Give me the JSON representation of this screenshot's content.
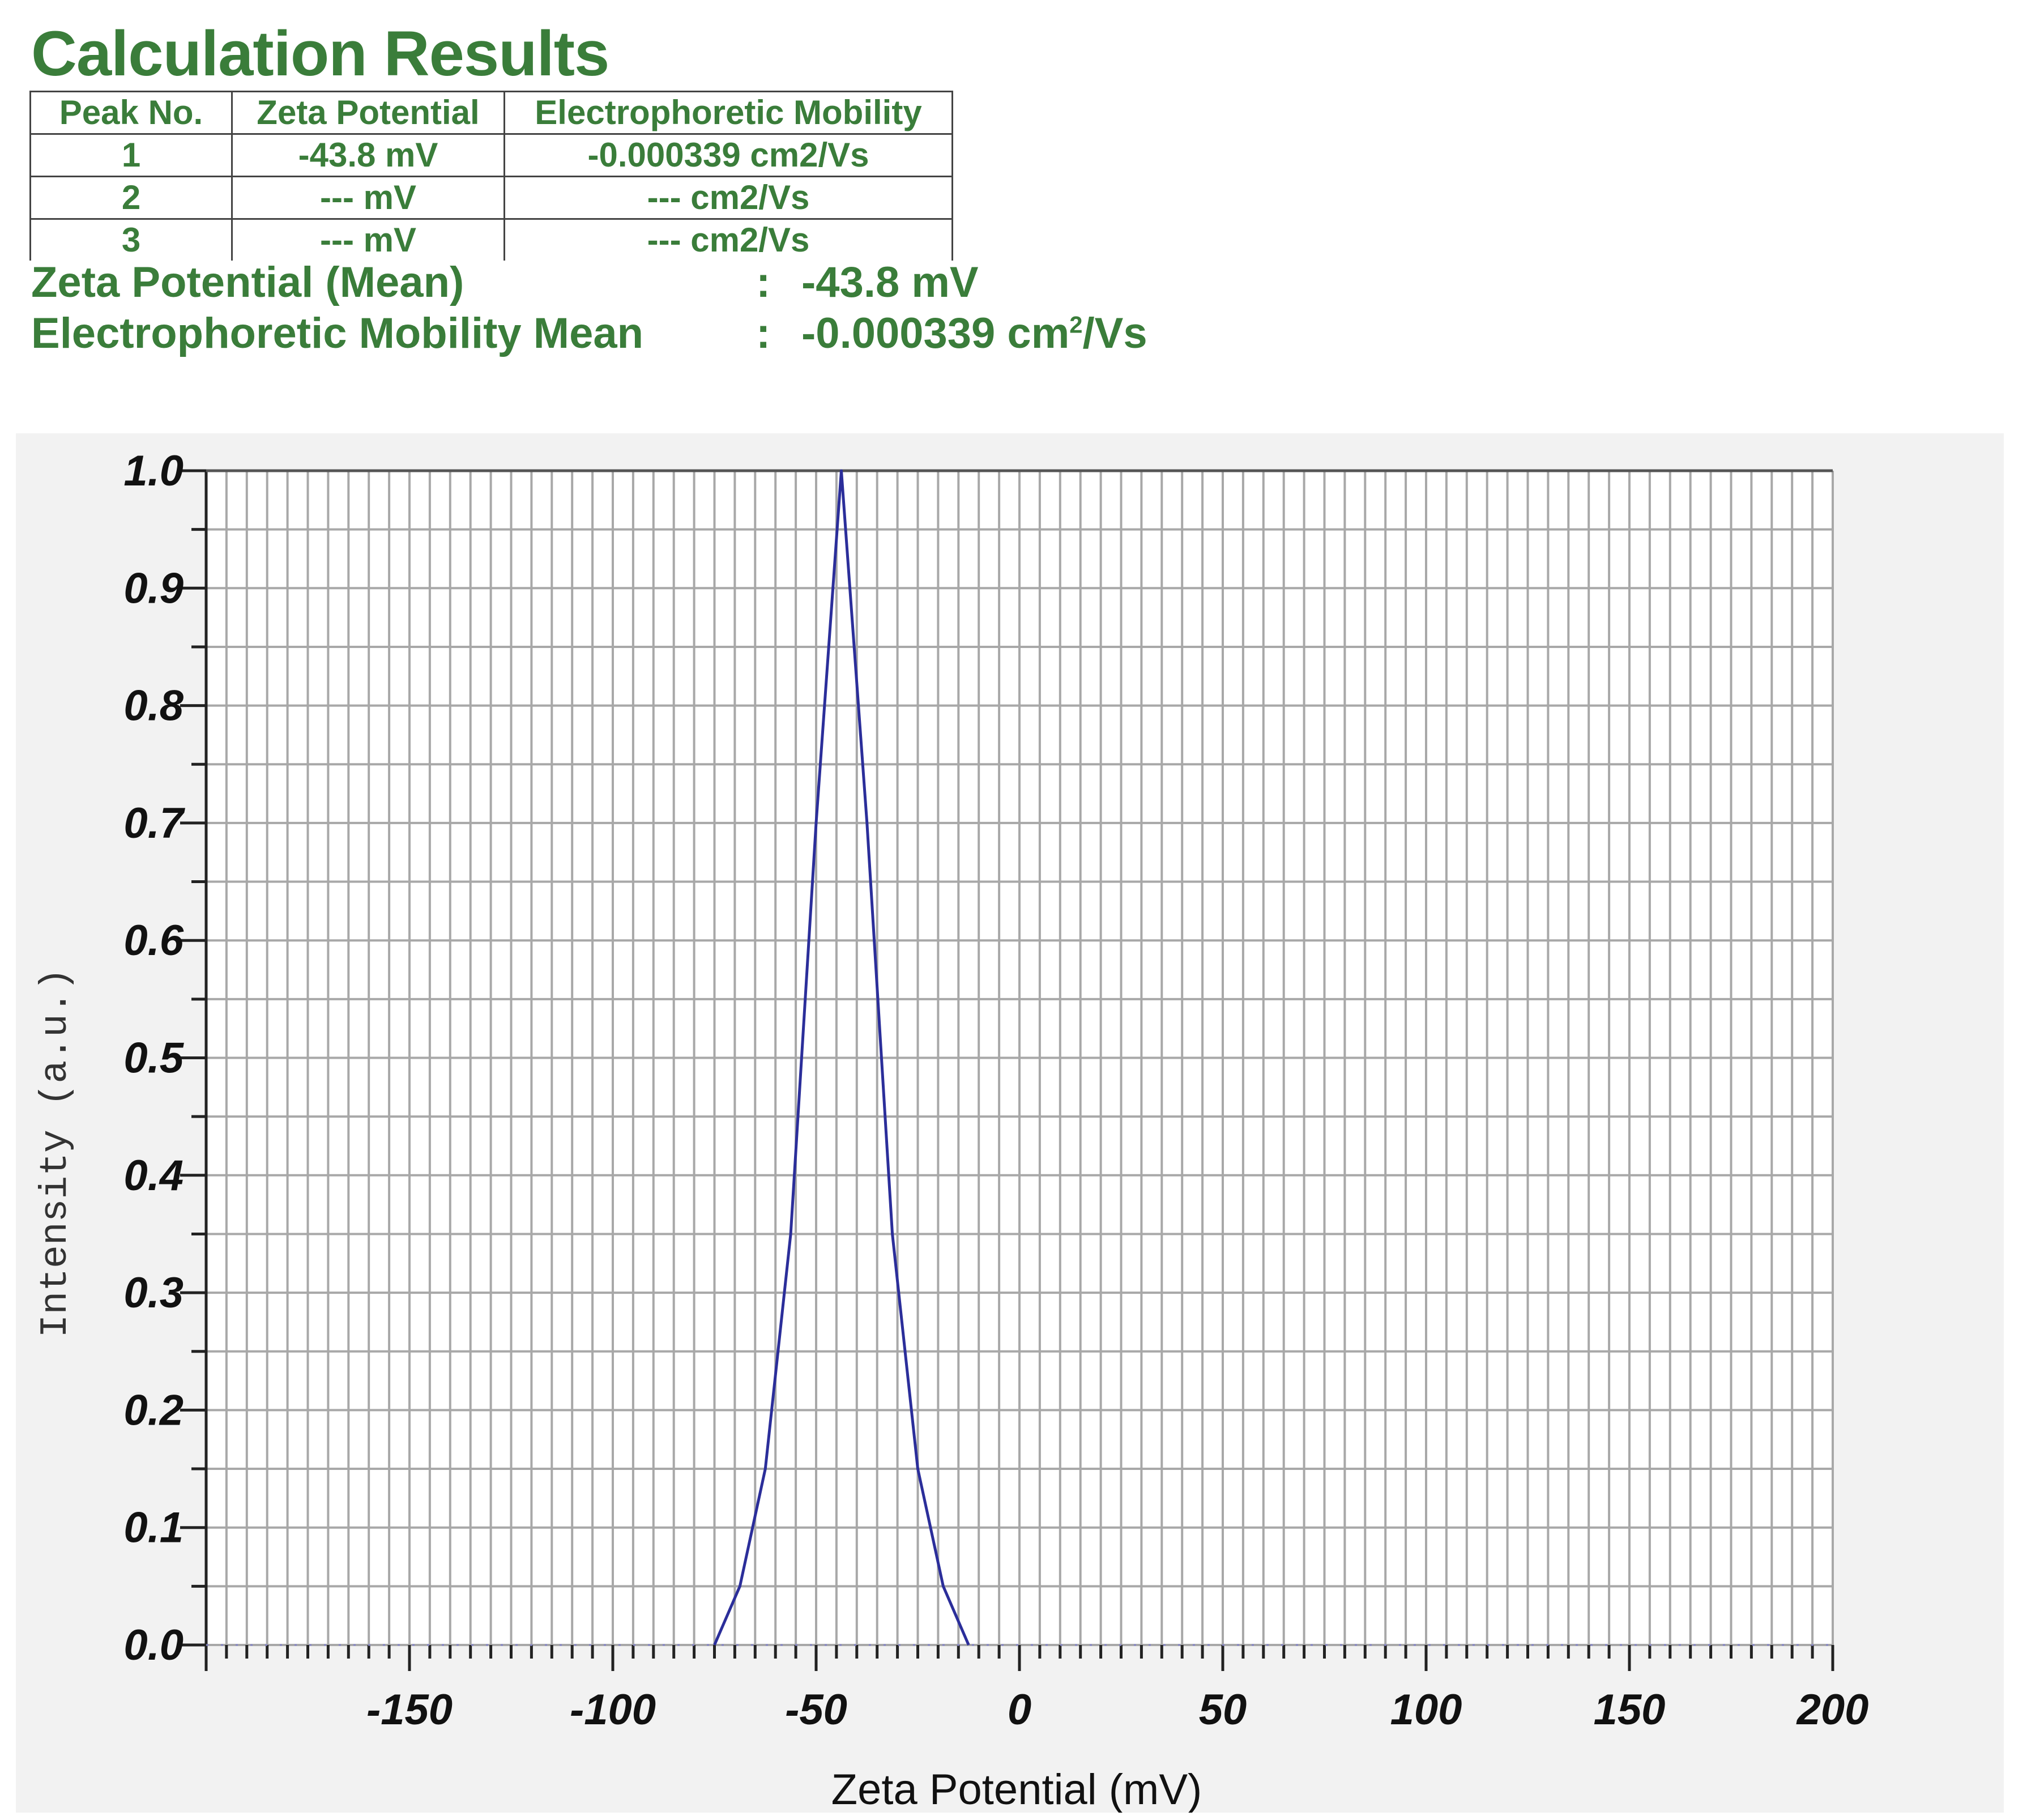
{
  "header": {
    "title": "Calculation Results"
  },
  "peak_table": {
    "columns": [
      "Peak No.",
      "Zeta Potential",
      "Electrophoretic Mobility"
    ],
    "rows": [
      {
        "peak": "1",
        "zeta": "-43.8 mV",
        "mobility": "-0.000339 cm2/Vs"
      },
      {
        "peak": "2",
        "zeta": "--- mV",
        "mobility": "--- cm2/Vs"
      },
      {
        "peak": "3",
        "zeta": "--- mV",
        "mobility": "--- cm2/Vs"
      }
    ]
  },
  "summary": {
    "zeta_mean_label": "Zeta Potential (Mean)",
    "zeta_mean_colon": ":",
    "zeta_mean_value": "-43.8",
    "zeta_mean_unit": "mV",
    "mobility_mean_label": "Electrophoretic Mobility Mean",
    "mobility_mean_colon": ":",
    "mobility_mean_value": "-0.000339",
    "mobility_mean_unit_base": "cm",
    "mobility_mean_unit_sup": "2",
    "mobility_mean_unit_tail": "/Vs"
  },
  "colors": {
    "text_green": "#3a7d3a",
    "curve": "#2b2e9a",
    "grid": "#a8a8a8",
    "axis": "#222222",
    "panel_bg": "#f2f2f2"
  },
  "chart_data": {
    "type": "line",
    "title": "",
    "xlabel": "Zeta Potential (mV)",
    "ylabel": "Intensity (a.u.)",
    "xlim": [
      -200,
      200
    ],
    "ylim": [
      0.0,
      1.0
    ],
    "x_tick_labels": [
      "-150",
      "-100",
      "-50",
      "0",
      "50",
      "100",
      "150",
      "200"
    ],
    "x_ticks": [
      -150,
      -100,
      -50,
      0,
      50,
      100,
      150,
      200
    ],
    "y_tick_labels": [
      "0.0",
      "0.1",
      "0.2",
      "0.3",
      "0.4",
      "0.5",
      "0.6",
      "0.7",
      "0.8",
      "0.9",
      "1.0"
    ],
    "y_ticks": [
      0.0,
      0.1,
      0.2,
      0.3,
      0.4,
      0.5,
      0.6,
      0.7,
      0.8,
      0.9,
      1.0
    ],
    "grid": true,
    "x_minor_step": 5,
    "y_minor_step": 0.05,
    "legend": null,
    "series": [
      {
        "name": "Intensity",
        "x": [
          -75,
          -68.75,
          -62.5,
          -56.25,
          -50,
          -43.8,
          -37.5,
          -31.25,
          -25,
          -18.75,
          -12.5
        ],
        "y": [
          0.0,
          0.05,
          0.15,
          0.35,
          0.7,
          1.0,
          0.7,
          0.35,
          0.15,
          0.05,
          0.0
        ]
      }
    ]
  }
}
